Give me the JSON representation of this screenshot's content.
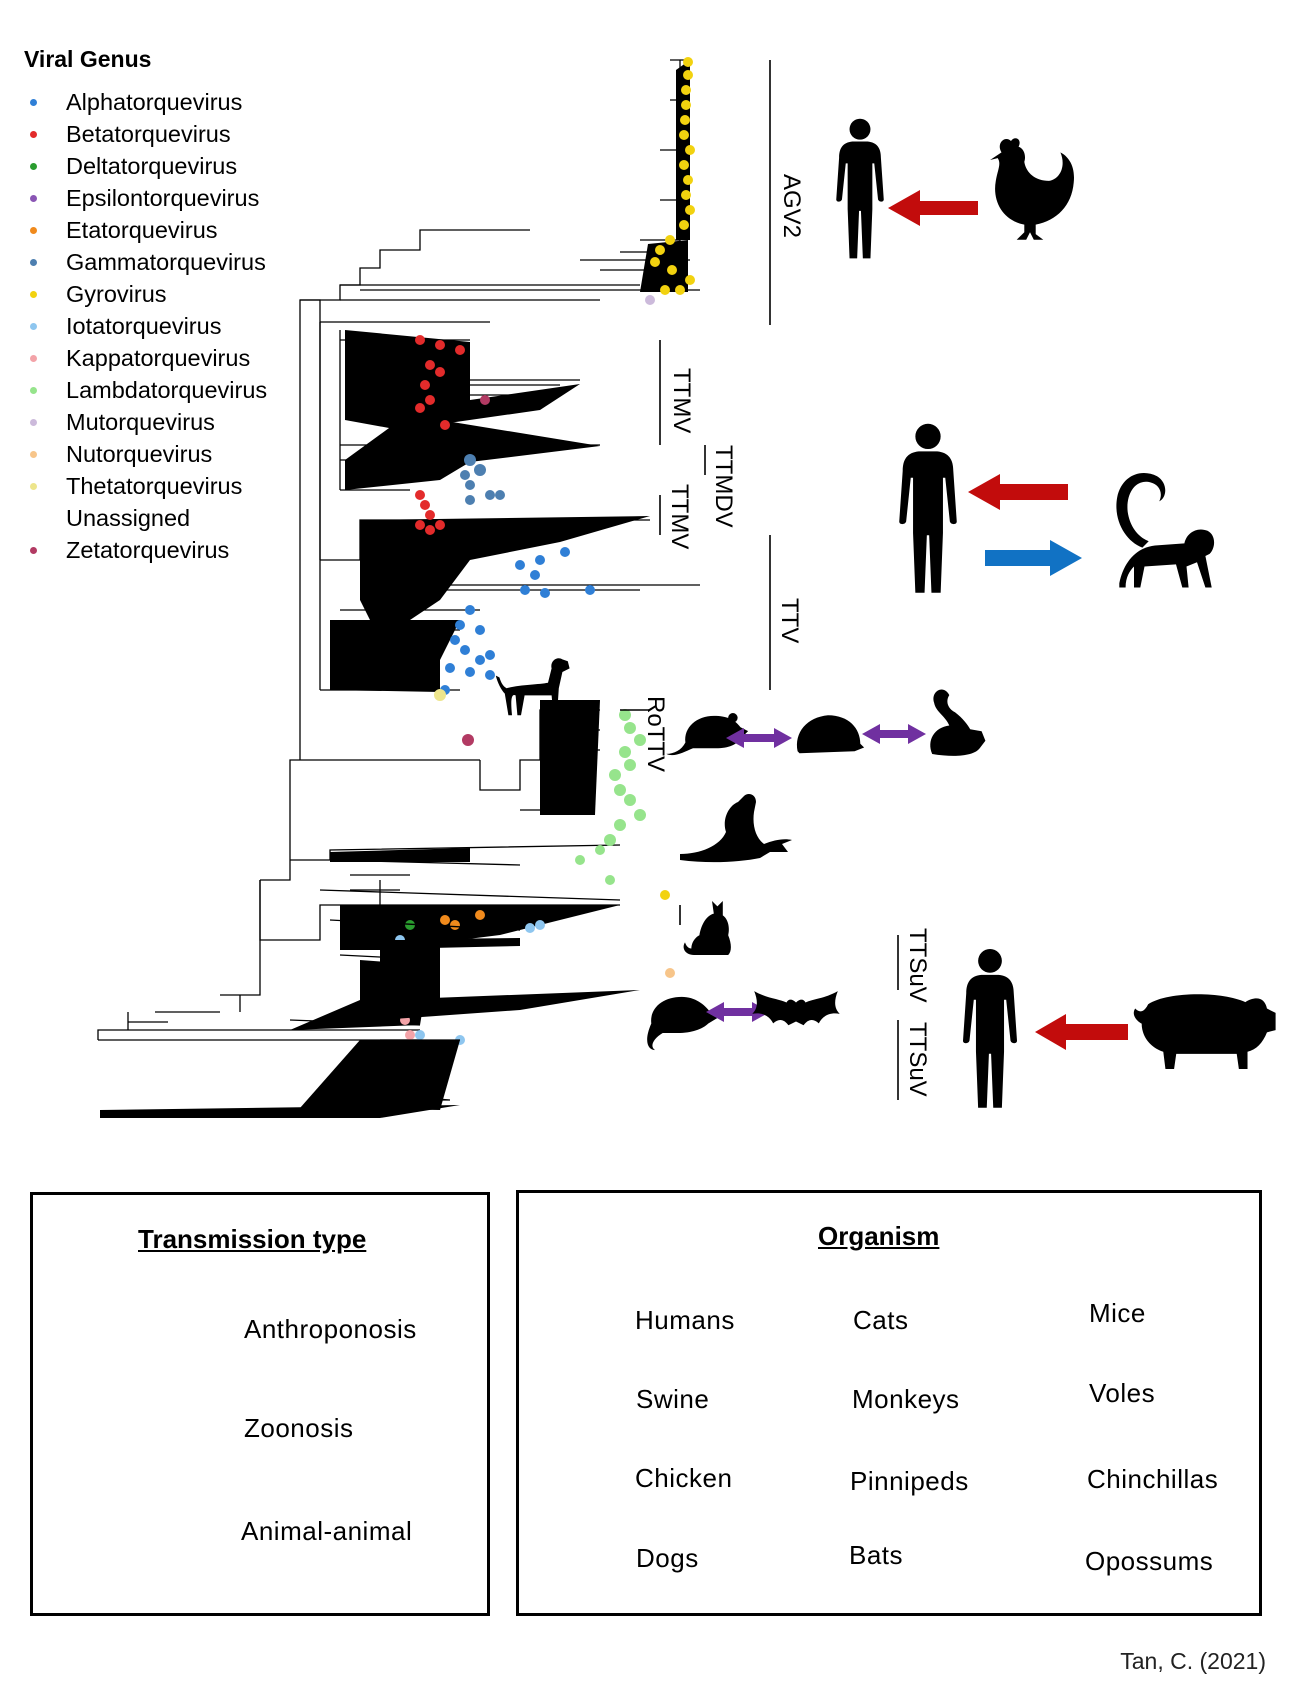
{
  "genus_legend": {
    "title": "Viral Genus",
    "items": [
      {
        "label": "Alphatorquevirus",
        "color": "#2f7fd6"
      },
      {
        "label": "Betatorquevirus",
        "color": "#e32b2b"
      },
      {
        "label": "Deltatorquevirus",
        "color": "#2a9c2f"
      },
      {
        "label": "Epsilontorquevirus",
        "color": "#8a55b4"
      },
      {
        "label": "Etatorquevirus",
        "color": "#f08a1c"
      },
      {
        "label": "Gammatorquevirus",
        "color": "#4d7fb0"
      },
      {
        "label": "Gyrovirus",
        "color": "#f2d20f"
      },
      {
        "label": "Iotatorquevirus",
        "color": "#8ec6ef"
      },
      {
        "label": "Kappatorquevirus",
        "color": "#f3a3a8"
      },
      {
        "label": "Lambdatorquevirus",
        "color": "#96e48c"
      },
      {
        "label": "Mutorquevirus",
        "color": "#ccbadb"
      },
      {
        "label": "Nutorquevirus",
        "color": "#f7c58a"
      },
      {
        "label": "Thetatorquevirus",
        "color": "#ede58c"
      },
      {
        "label": "Unassigned",
        "color": ""
      },
      {
        "label": "Zetatorquevirus",
        "color": "#b23a63"
      }
    ]
  },
  "clades": [
    "AGV2",
    "TTMV",
    "TTMDV",
    "TTMV",
    "TTV",
    "RoTTV",
    "TTSuV",
    "TTSuV"
  ],
  "transmission": {
    "title": "Transmission type",
    "items": [
      {
        "label": "Anthroponosis",
        "color": "#1172c4"
      },
      {
        "label": "Zoonosis",
        "color": "#c20c0c"
      },
      {
        "label": "Animal-animal",
        "color": "#7030a0"
      }
    ]
  },
  "organism": {
    "title": "Organism",
    "items": [
      "Humans",
      "Cats",
      "Mice",
      "Swine",
      "Monkeys",
      "Voles",
      "Chicken",
      "Pinnipeds",
      "Chinchillas",
      "Dogs",
      "Bats",
      "Opossums"
    ]
  },
  "credit": "Tan, C. (2021)"
}
